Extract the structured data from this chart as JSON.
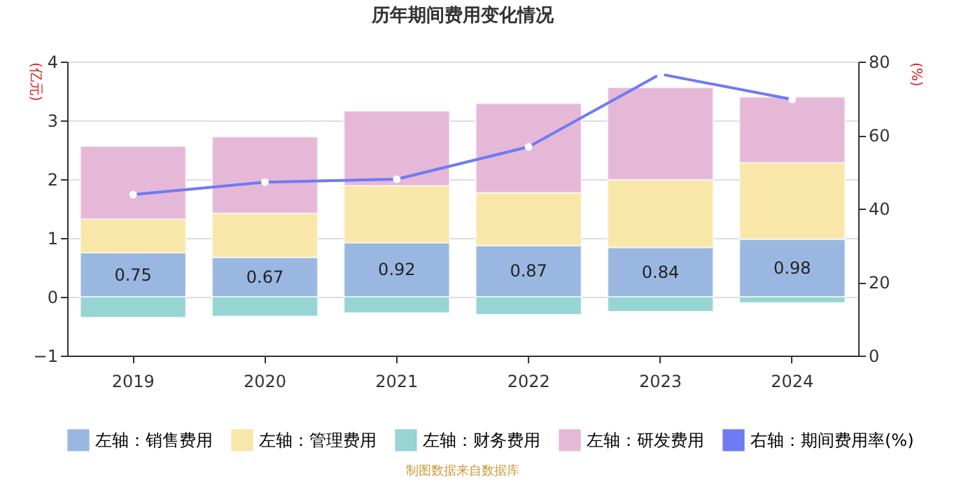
{
  "chart_data": {
    "type": "bar",
    "title": "历年期间费用变化情况",
    "categories": [
      "2019",
      "2020",
      "2021",
      "2022",
      "2023",
      "2024"
    ],
    "stacked": true,
    "series": [
      {
        "name": "左轴：销售费用",
        "color": "#9ab7e2",
        "values": [
          0.75,
          0.67,
          0.92,
          0.87,
          0.84,
          0.98
        ],
        "value_labels": [
          "0.75",
          "0.67",
          "0.92",
          "0.87",
          "0.84",
          "0.98"
        ]
      },
      {
        "name": "左轴：管理费用",
        "color": "#f8e7a8",
        "values": [
          0.57,
          0.75,
          0.97,
          0.9,
          1.15,
          1.3
        ]
      },
      {
        "name": "左轴：财务费用",
        "color": "#97d4d4",
        "values": [
          -0.35,
          -0.33,
          -0.27,
          -0.3,
          -0.25,
          -0.1
        ]
      },
      {
        "name": "左轴：研发费用",
        "color": "#e6b8d8",
        "values": [
          1.24,
          1.3,
          1.27,
          1.52,
          1.57,
          1.12
        ]
      },
      {
        "name": "右轴：期间费用率(%)",
        "type": "line",
        "axis": "y2",
        "marker": "circle",
        "color": "#6e7bf2",
        "values": [
          43.8,
          47.2,
          48,
          56.8,
          76.6,
          69.7
        ]
      }
    ],
    "ylabel": "(亿元)",
    "y2label": "(%)",
    "ylim": [
      -1,
      4
    ],
    "yticks": [
      -1,
      0,
      1,
      2,
      3,
      4
    ],
    "y2lim": [
      0,
      80
    ],
    "y2ticks": [
      0,
      20,
      40,
      60,
      80
    ],
    "grid": "y",
    "legend": "bottom",
    "annotations": [
      "制图数据来自数据库"
    ]
  }
}
